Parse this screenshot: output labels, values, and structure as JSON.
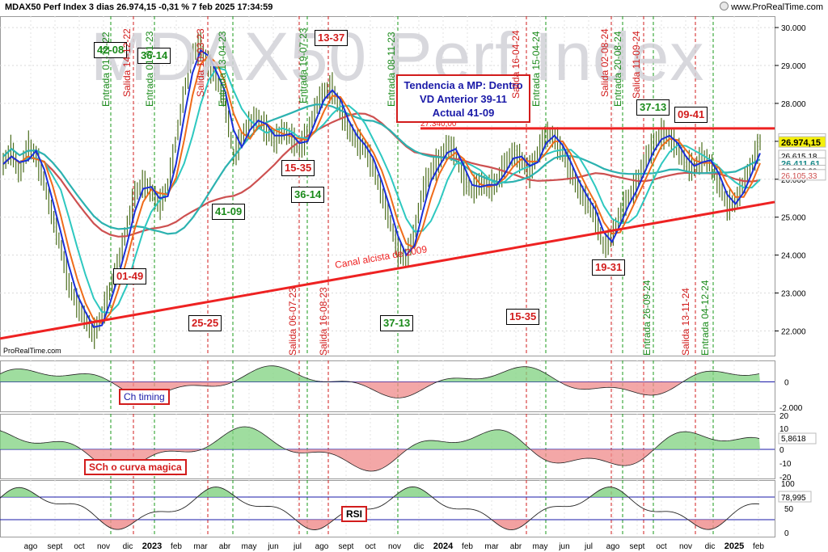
{
  "header": {
    "title": "MDAX50 Perf Index 3 dias 26.974,15 -0,31 % 7 feb 2025 17:34:59",
    "brand": "www.ProRealTime.com"
  },
  "watermark": "MDAX50 Perf Index",
  "footer_brand": "ProRealTime.com",
  "trend_box": {
    "line1": "Tendencia a MP: Dentro",
    "line2": "VD Anterior 39-11",
    "line3": "Actual 41-09"
  },
  "canal_label": "Canal alcista de 2009",
  "level_label": "27.340,00",
  "box_labels": [
    {
      "text": "42-08",
      "color": "green"
    },
    {
      "text": "36-14",
      "color": "green"
    },
    {
      "text": "13-37",
      "color": "red"
    },
    {
      "text": "15-35",
      "color": "red"
    },
    {
      "text": "36-14",
      "color": "green"
    },
    {
      "text": "41-09",
      "color": "green"
    },
    {
      "text": "01-49",
      "color": "red"
    },
    {
      "text": "25-25",
      "color": "red"
    },
    {
      "text": "37-13",
      "color": "green"
    },
    {
      "text": "15-35",
      "color": "red"
    },
    {
      "text": "19-31",
      "color": "red"
    },
    {
      "text": "37-13",
      "color": "green"
    },
    {
      "text": "09-41",
      "color": "red"
    }
  ],
  "vertical_labels": [
    {
      "text": "Entrada 01-11-22",
      "color": "green"
    },
    {
      "text": "Salida 14-12-22",
      "color": "red"
    },
    {
      "text": "Entrada 01-01-23",
      "color": "green"
    },
    {
      "text": "Salida 10-03-23",
      "color": "red"
    },
    {
      "text": "Entrada 13-04-23",
      "color": "green"
    },
    {
      "text": "Entrada 19-07-23",
      "color": "green"
    },
    {
      "text": "Salida 06-07-23",
      "color": "red"
    },
    {
      "text": "Salida 16-08-23",
      "color": "red"
    },
    {
      "text": "Entrada 08-11-23",
      "color": "green"
    },
    {
      "text": "Salida 16-04-24",
      "color": "red"
    },
    {
      "text": "Entrada 15-04-24",
      "color": "green"
    },
    {
      "text": "Salida 02-08-24",
      "color": "red"
    },
    {
      "text": "Entrada 20-08-24",
      "color": "green"
    },
    {
      "text": "Salida 11-09-24",
      "color": "red"
    },
    {
      "text": "Entrada 26-09-24",
      "color": "green"
    },
    {
      "text": "Salida 13-11-24",
      "color": "red"
    },
    {
      "text": "Entrada 04-12-24",
      "color": "green"
    }
  ],
  "panel_labels": {
    "timing": "Ch timing",
    "sch": "SCh o curva magica",
    "rsi": "RSI"
  },
  "colors": {
    "price_bars": "#4c6e1e",
    "ma_blue": "#1a2fd8",
    "ma_orange": "#ef6c1a",
    "ma_cyan": "#2ec8c0",
    "ma_red": "#cd5050",
    "ma_teal": "#2cb2b0",
    "channel": "#ee2222",
    "bull_fill": "#7fd17f",
    "bear_fill": "#ef8a8a",
    "entry_line": "#1a9a1a",
    "exit_line": "#d21c1c"
  },
  "chart_data": [
    {
      "type": "line",
      "title": "MDAX50 Perf Index 3 dias",
      "x_ticks": [
        "ago",
        "sept",
        "oct",
        "nov",
        "dic",
        "2023",
        "feb",
        "mar",
        "abr",
        "may",
        "jun",
        "jul",
        "ago",
        "sept",
        "oct",
        "nov",
        "dic",
        "2024",
        "feb",
        "mar",
        "abr",
        "may",
        "jun",
        "jul",
        "ago",
        "sept",
        "oct",
        "nov",
        "dic",
        "2025",
        "feb"
      ],
      "y_ticks": [
        22000,
        23000,
        24000,
        25000,
        26000,
        27000,
        28000,
        29000,
        30000
      ],
      "y_tick_labels": [
        "22.000",
        "23.000",
        "24.000",
        "25.000",
        "26.000",
        "27.000",
        "28.000",
        "29.000",
        "30.000"
      ],
      "ylim": [
        21350,
        30300
      ],
      "price_labels": [
        {
          "value": 27052,
          "text": "27.052,00"
        },
        {
          "value": 26974.15,
          "text": "26.974,15"
        },
        {
          "value": 26615.18,
          "text": "26.615,18"
        },
        {
          "value": 26411.61,
          "text": "26.411,61"
        },
        {
          "value": 26220,
          "text": "26.2?2,?8"
        },
        {
          "value": 26105.33,
          "text": "26.105,33"
        }
      ],
      "horizontal_resistance": 27340,
      "channel_line": {
        "start": 21800,
        "end": 25400
      },
      "price_path": [
        [
          0,
          26400
        ],
        [
          1,
          26800
        ],
        [
          2,
          26100
        ],
        [
          3,
          26900
        ],
        [
          4,
          26600
        ],
        [
          5,
          25900
        ],
        [
          6,
          25000
        ],
        [
          7,
          24200
        ],
        [
          8,
          23200
        ],
        [
          9,
          22700
        ],
        [
          10,
          22300
        ],
        [
          11,
          21900
        ],
        [
          12,
          22400
        ],
        [
          13,
          23100
        ],
        [
          14,
          23800
        ],
        [
          15,
          24700
        ],
        [
          16,
          25600
        ],
        [
          17,
          25900
        ],
        [
          18,
          25700
        ],
        [
          19,
          25300
        ],
        [
          20,
          25800
        ],
        [
          21,
          27000
        ],
        [
          22,
          28300
        ],
        [
          23,
          29300
        ],
        [
          24,
          29500
        ],
        [
          25,
          29000
        ],
        [
          26,
          28600
        ],
        [
          27,
          28000
        ],
        [
          28,
          26600
        ],
        [
          29,
          27100
        ],
        [
          30,
          27500
        ],
        [
          31,
          27600
        ],
        [
          32,
          27300
        ],
        [
          33,
          27000
        ],
        [
          34,
          27300
        ],
        [
          35,
          27100
        ],
        [
          36,
          26800
        ],
        [
          37,
          27200
        ],
        [
          38,
          27900
        ],
        [
          39,
          28300
        ],
        [
          40,
          28400
        ],
        [
          41,
          27800
        ],
        [
          42,
          27300
        ],
        [
          43,
          27000
        ],
        [
          44,
          26800
        ],
        [
          45,
          26300
        ],
        [
          46,
          25600
        ],
        [
          47,
          24900
        ],
        [
          48,
          24100
        ],
        [
          49,
          23900
        ],
        [
          50,
          24600
        ],
        [
          51,
          25700
        ],
        [
          52,
          26200
        ],
        [
          53,
          26500
        ],
        [
          54,
          26900
        ],
        [
          55,
          26700
        ],
        [
          56,
          26000
        ],
        [
          57,
          25700
        ],
        [
          58,
          25900
        ],
        [
          59,
          25800
        ],
        [
          60,
          25900
        ],
        [
          61,
          26400
        ],
        [
          62,
          26700
        ],
        [
          63,
          26500
        ],
        [
          64,
          26200
        ],
        [
          65,
          26700
        ],
        [
          66,
          27200
        ],
        [
          67,
          27100
        ],
        [
          68,
          26700
        ],
        [
          69,
          26200
        ],
        [
          70,
          25700
        ],
        [
          71,
          25400
        ],
        [
          72,
          25000
        ],
        [
          73,
          24200
        ],
        [
          74,
          24500
        ],
        [
          75,
          25100
        ],
        [
          76,
          25500
        ],
        [
          77,
          25900
        ],
        [
          78,
          26500
        ],
        [
          79,
          26900
        ],
        [
          80,
          27200
        ],
        [
          81,
          27100
        ],
        [
          82,
          26800
        ],
        [
          83,
          26400
        ],
        [
          84,
          26300
        ],
        [
          85,
          26600
        ],
        [
          86,
          26400
        ],
        [
          87,
          25900
        ],
        [
          88,
          25300
        ],
        [
          89,
          25400
        ],
        [
          90,
          25900
        ],
        [
          91,
          26400
        ],
        [
          92,
          26974
        ]
      ]
    },
    {
      "type": "area",
      "title": "Ch timing",
      "y_tick_labels": [
        "0",
        "-2.000"
      ]
    },
    {
      "type": "area",
      "title": "SCh o curva magica",
      "y_tick_labels": [
        "20",
        "10",
        "0",
        "-10",
        "-20"
      ],
      "last_value": 5.8618,
      "last_value_label": "5,8618"
    },
    {
      "type": "line",
      "title": "RSI",
      "y_tick_labels": [
        "100",
        "50",
        "0"
      ],
      "last_value": 78.995,
      "last_value_label": "78,995"
    }
  ]
}
